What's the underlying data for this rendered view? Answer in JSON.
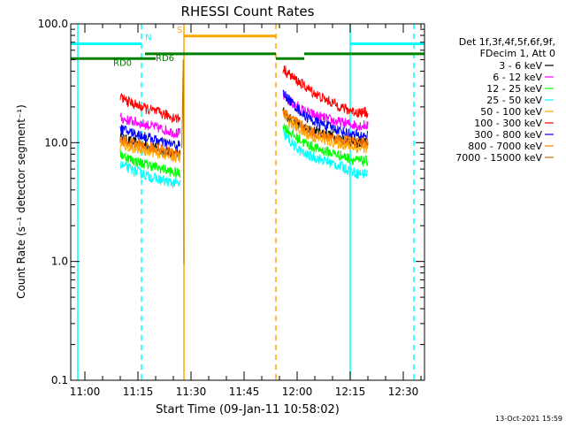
{
  "chart_data": {
    "type": "line",
    "title": "RHESSI Count Rates",
    "xlabel": "Start Time (09-Jan-11 10:58:02)",
    "ylabel": "Count Rate (s⁻¹ detector segment⁻¹)",
    "yscale": "log",
    "ylim": [
      0.1,
      100.0
    ],
    "xlim": [
      "10:56",
      "12:36"
    ],
    "x_tick_labels": [
      "11:00",
      "11:15",
      "11:30",
      "11:45",
      "12:00",
      "12:15",
      "12:30"
    ],
    "y_tick_labels": [
      "0.1",
      "1.0",
      "10.0",
      "100.0"
    ],
    "legend_position": "right",
    "legend_header": [
      "Det 1f,3f,4f,5f,6f,9f,",
      "FDecim 1, Att 0"
    ],
    "series": [
      {
        "name": "3 - 6 keV",
        "color": "#000000",
        "segments": [
          {
            "x": [
              "11:10",
              "11:14",
              "11:18",
              "11:22",
              "11:26",
              "11:27"
            ],
            "y": [
              11.0,
              10.0,
              9.5,
              8.5,
              8.0,
              8.0
            ]
          },
          {
            "x": [
              "11:56",
              "11:59",
              "12:02",
              "12:05",
              "12:08",
              "12:11",
              "12:14",
              "12:17",
              "12:20"
            ],
            "y": [
              18.0,
              15.0,
              13.0,
              12.5,
              12.0,
              11.0,
              10.5,
              10.0,
              10.0
            ]
          }
        ]
      },
      {
        "name": "6 - 12 keV",
        "color": "#ff00ff",
        "segments": [
          {
            "x": [
              "11:10",
              "11:14",
              "11:18",
              "11:22",
              "11:26",
              "11:27"
            ],
            "y": [
              16.0,
              15.0,
              14.0,
              13.0,
              12.0,
              12.0
            ]
          },
          {
            "x": [
              "11:56",
              "11:59",
              "12:02",
              "12:05",
              "12:08",
              "12:11",
              "12:14",
              "12:17",
              "12:20"
            ],
            "y": [
              25.0,
              21.0,
              18.5,
              17.0,
              16.0,
              15.0,
              14.5,
              14.0,
              14.0
            ]
          }
        ]
      },
      {
        "name": "12 - 25 keV",
        "color": "#00ff00",
        "segments": [
          {
            "x": [
              "11:10",
              "11:14",
              "11:18",
              "11:22",
              "11:26",
              "11:27"
            ],
            "y": [
              8.0,
              7.0,
              6.5,
              6.0,
              5.5,
              5.5
            ]
          },
          {
            "x": [
              "11:56",
              "11:59",
              "12:02",
              "12:05",
              "12:08",
              "12:11",
              "12:14",
              "12:17",
              "12:20"
            ],
            "y": [
              14.0,
              11.5,
              10.0,
              9.0,
              8.5,
              8.0,
              7.5,
              7.0,
              7.0
            ]
          }
        ]
      },
      {
        "name": "25 - 50 keV",
        "color": "#00ffff",
        "segments": [
          {
            "x": [
              "11:10",
              "11:14",
              "11:18",
              "11:22",
              "11:26",
              "11:27"
            ],
            "y": [
              6.5,
              5.8,
              5.2,
              4.8,
              4.5,
              4.5
            ]
          },
          {
            "x": [
              "11:56",
              "11:59",
              "12:02",
              "12:05",
              "12:08",
              "12:11",
              "12:14",
              "12:17",
              "12:20"
            ],
            "y": [
              12.0,
              9.5,
              8.0,
              7.5,
              7.0,
              6.5,
              6.0,
              5.5,
              5.5
            ]
          }
        ]
      },
      {
        "name": "50 - 100 keV",
        "color": "#ffa500",
        "segments": [
          {
            "x": [
              "11:10",
              "11:14",
              "11:18",
              "11:22",
              "11:26",
              "11:27"
            ],
            "y": [
              9.5,
              9.0,
              8.5,
              8.0,
              7.5,
              7.5
            ]
          },
          {
            "x": [
              "11:56",
              "11:59",
              "12:02",
              "12:05",
              "12:08",
              "12:11",
              "12:14",
              "12:17",
              "12:20"
            ],
            "y": [
              17.0,
              14.0,
              12.0,
              11.0,
              10.5,
              10.0,
              9.5,
              9.0,
              9.0
            ]
          }
        ]
      },
      {
        "name": "100 - 300 keV",
        "color": "#ff0000",
        "segments": [
          {
            "x": [
              "11:10",
              "11:14",
              "11:18",
              "11:22",
              "11:26",
              "11:27"
            ],
            "y": [
              24.0,
              21.0,
              19.0,
              17.5,
              16.0,
              16.0
            ]
          },
          {
            "x": [
              "11:56",
              "11:59",
              "12:02",
              "12:05",
              "12:08",
              "12:11",
              "12:14",
              "12:17",
              "12:20"
            ],
            "y": [
              42.0,
              35.0,
              30.0,
              26.0,
              23.0,
              21.0,
              19.0,
              18.0,
              18.0
            ]
          }
        ]
      },
      {
        "name": "300 - 800 keV",
        "color": "#0000ff",
        "segments": [
          {
            "x": [
              "11:10",
              "11:14",
              "11:18",
              "11:22",
              "11:26",
              "11:27"
            ],
            "y": [
              13.0,
              12.0,
              11.0,
              10.0,
              9.5,
              9.5
            ]
          },
          {
            "x": [
              "11:56",
              "11:59",
              "12:02",
              "12:05",
              "12:08",
              "12:11",
              "12:14",
              "12:17",
              "12:20"
            ],
            "y": [
              26.0,
              21.0,
              17.0,
              15.0,
              14.0,
              13.0,
              12.0,
              11.5,
              11.5
            ]
          }
        ]
      },
      {
        "name": "800 - 7000 keV",
        "color": "#ff8000",
        "segments": [
          {
            "x": [
              "11:10",
              "11:14",
              "11:18",
              "11:22",
              "11:26",
              "11:27"
            ],
            "y": [
              10.5,
              9.8,
              9.2,
              8.7,
              8.3,
              8.3
            ]
          },
          {
            "x": [
              "11:56",
              "11:59",
              "12:02",
              "12:05",
              "12:08",
              "12:11",
              "12:14",
              "12:17",
              "12:20"
            ],
            "y": [
              18.5,
              15.5,
              13.5,
              12.0,
              11.5,
              11.0,
              10.5,
              10.0,
              10.0
            ]
          }
        ]
      },
      {
        "name": "7000 - 15000 keV",
        "color": "#c07000",
        "segments": [
          {
            "x": [
              "11:27.4",
              "11:27.6",
              "11:27.8",
              "11:28"
            ],
            "y": [
              9.0,
              20.0,
              50.0,
              0.95
            ]
          }
        ]
      }
    ],
    "annotations": {
      "flags": [
        {
          "label": "N",
          "color": "#00ffff",
          "y": 68.0,
          "x_start": "10:56",
          "x_end": "11:16",
          "label_x": "11:17"
        },
        {
          "label": "N",
          "color": "#00ffff",
          "y": 68.0,
          "x_start": "12:15",
          "x_end": "12:36",
          "label_x": ""
        },
        {
          "label": "S",
          "color": "#ffa500",
          "y": 79.0,
          "x_start": "11:28",
          "x_end": "11:54",
          "label_x": "11:26"
        },
        {
          "label": "RD0",
          "color": "#008000",
          "y": 51.0,
          "x_start": "10:56",
          "x_end": "11:20",
          "label_x": "11:08"
        },
        {
          "label": "RD6",
          "color": "#008000",
          "y": 56.0,
          "x_start": "11:17",
          "x_end": "11:54",
          "label_x": "11:20"
        },
        {
          "label": "",
          "color": "#008000",
          "y": 51.0,
          "x_start": "11:54",
          "x_end": "12:02",
          "label_x": ""
        },
        {
          "label": "",
          "color": "#008000",
          "y": 56.0,
          "x_start": "12:02",
          "x_end": "12:36",
          "label_x": ""
        }
      ],
      "vlines": [
        {
          "x": "10:58",
          "color": "#00ffff",
          "dash": false
        },
        {
          "x": "11:16",
          "color": "#00ffff",
          "dash": true
        },
        {
          "x": "11:28",
          "color": "#ffa500",
          "dash": false
        },
        {
          "x": "11:54",
          "color": "#ffa500",
          "dash": true
        },
        {
          "x": "12:15",
          "color": "#00ffff",
          "dash": false
        },
        {
          "x": "12:33",
          "color": "#00ffff",
          "dash": true
        }
      ]
    }
  },
  "footer": {
    "timestamp": "13-Oct-2021 15:59"
  }
}
